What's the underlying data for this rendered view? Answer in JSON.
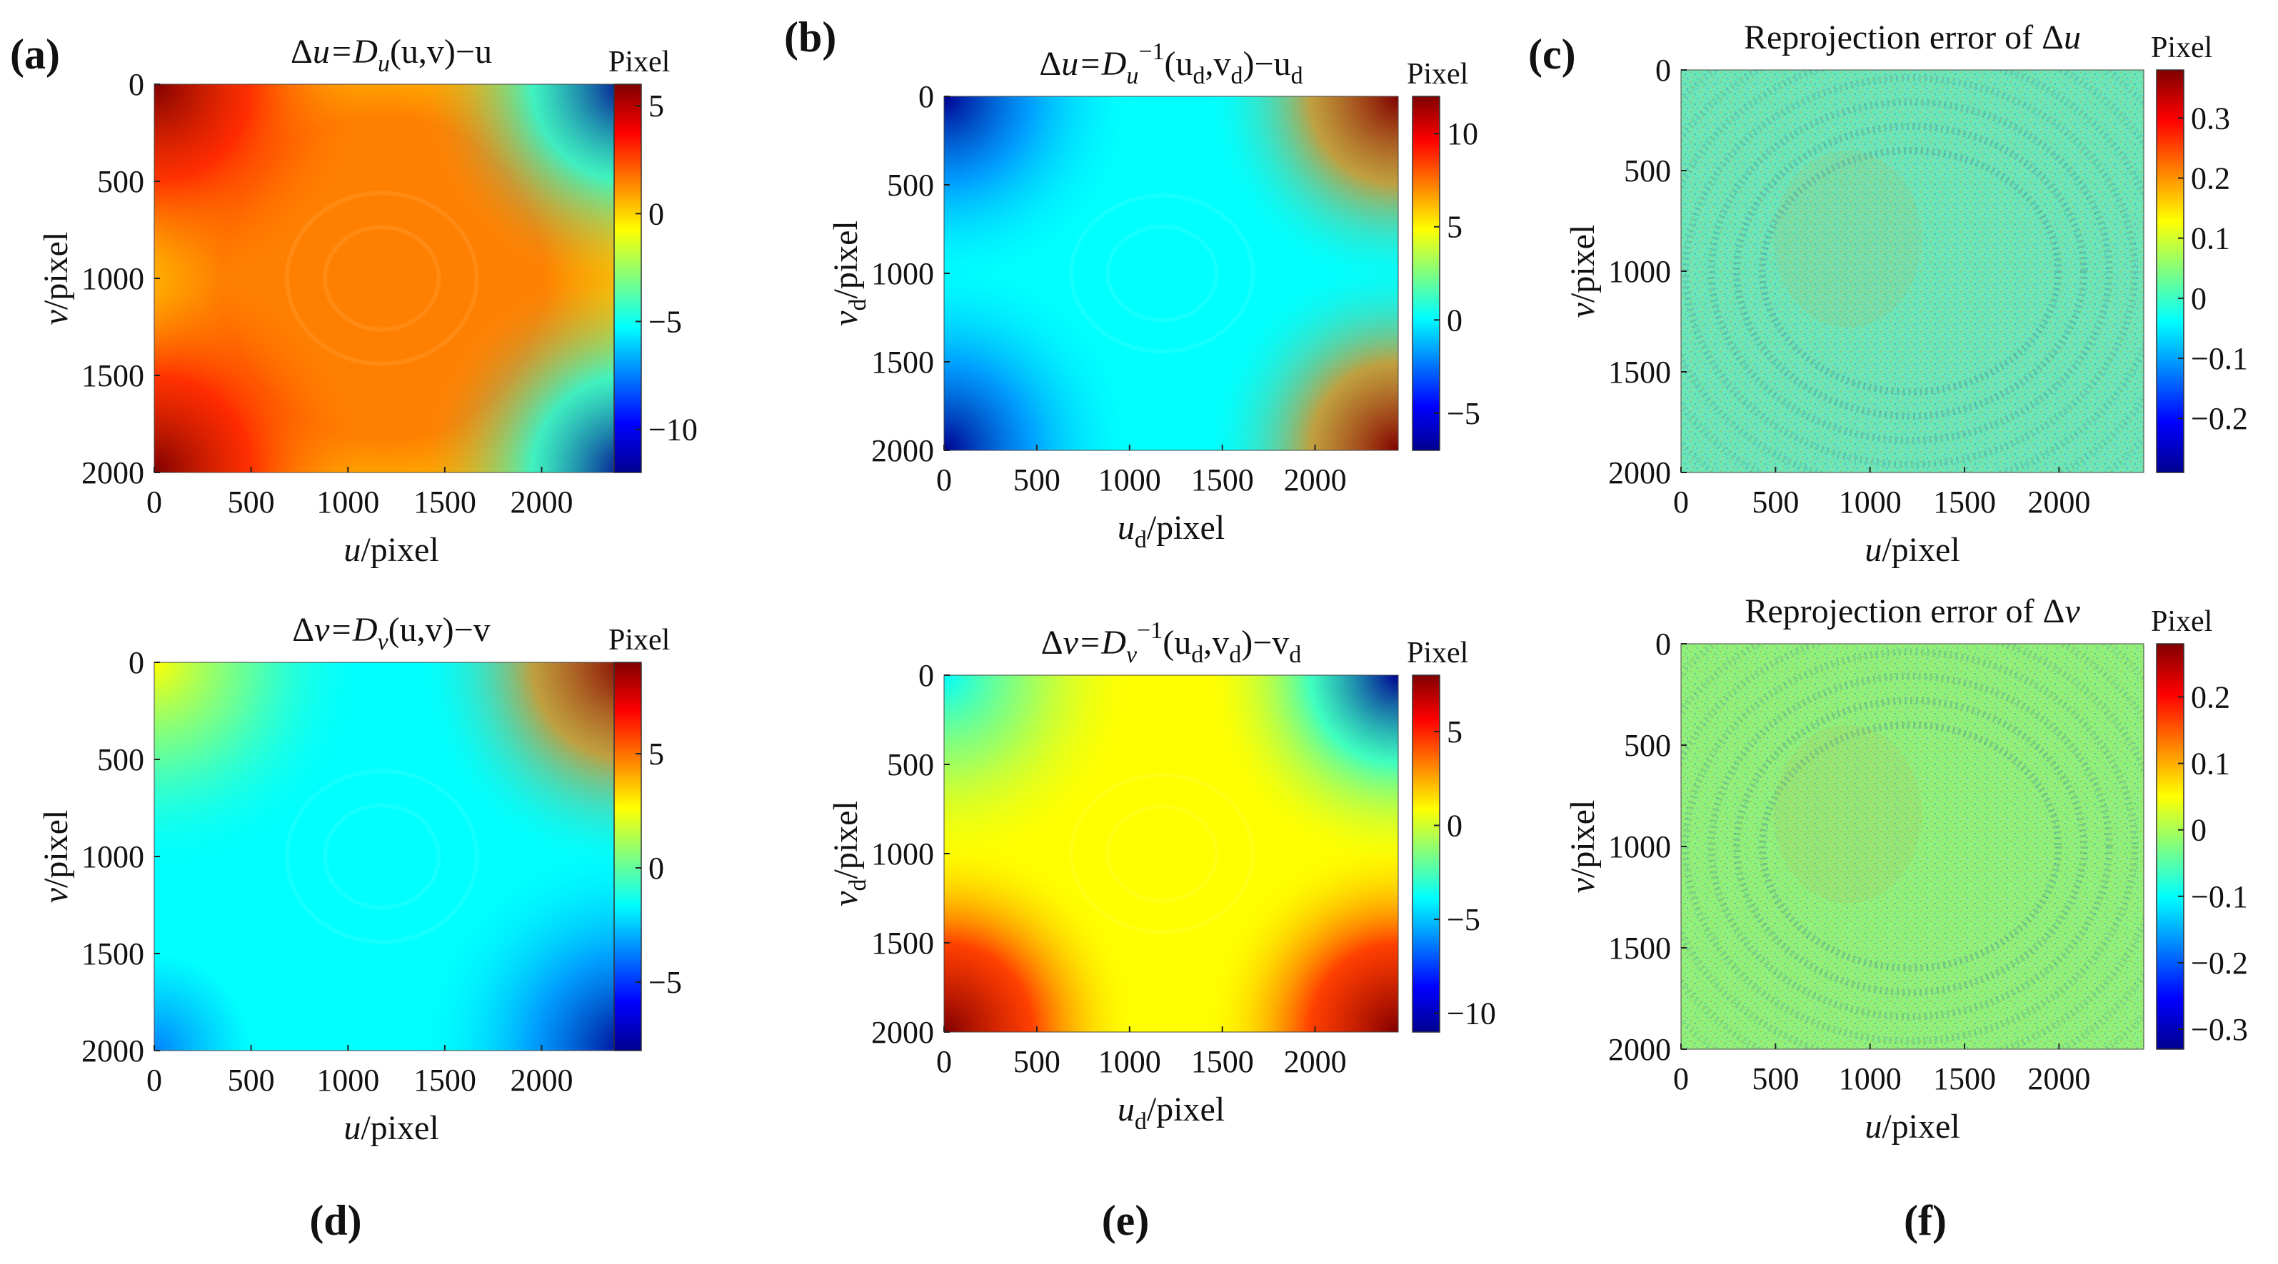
{
  "figure": {
    "tags_top": [
      "(a)",
      "(b)",
      "(c)"
    ],
    "tags_bottom": [
      "(d)",
      "(e)",
      "(f)"
    ],
    "colormap": [
      "#00008f",
      "#0000ff",
      "#0080ff",
      "#00ffff",
      "#80ff80",
      "#ffff00",
      "#ff8000",
      "#ff0000",
      "#800000"
    ]
  },
  "chart_data": [
    {
      "id": "a",
      "type": "heatmap",
      "pattern": "du",
      "title": {
        "pre": "Δ",
        "var": "u",
        "mid": "=D",
        "sub": "u",
        "sup": "",
        "args": "(u,v)−u"
      },
      "xlabel": {
        "var": "u",
        "sub": "",
        "unit": "/pixel"
      },
      "ylabel": {
        "var": "v",
        "sub": "",
        "unit": "/pixel"
      },
      "xlim": [
        0,
        2448
      ],
      "ylim": [
        2000,
        0
      ],
      "xticks": [
        "0",
        "500",
        "1000",
        "1500",
        "2000"
      ],
      "yticks": [
        "0",
        "500",
        "1000",
        "1500",
        "2000"
      ],
      "colorbar": {
        "label": "Pixel",
        "range": [
          -12,
          6
        ],
        "ticks": [
          "5",
          "0",
          "−5",
          "−10"
        ],
        "tick_values": [
          5,
          0,
          -5,
          -10
        ]
      }
    },
    {
      "id": "b",
      "type": "heatmap",
      "pattern": "du_inv",
      "title": {
        "pre": "Δ",
        "var": "u",
        "mid": "=D",
        "sub": "u",
        "sup": "−1",
        "args": "(u",
        "args2": "d",
        "args3": ",v",
        "args4": "d",
        "args5": ")−u",
        "args6": "d"
      },
      "xlabel": {
        "var": "u",
        "sub": "d",
        "unit": "/pixel"
      },
      "ylabel": {
        "var": "v",
        "sub": "d",
        "unit": "/pixel"
      },
      "xlim": [
        0,
        2448
      ],
      "ylim": [
        2000,
        0
      ],
      "xticks": [
        "0",
        "500",
        "1000",
        "1500",
        "2000"
      ],
      "yticks": [
        "0",
        "500",
        "1000",
        "1500",
        "2000"
      ],
      "colorbar": {
        "label": "Pixel",
        "range": [
          -7,
          12
        ],
        "ticks": [
          "10",
          "5",
          "0",
          "−5"
        ],
        "tick_values": [
          10,
          5,
          0,
          -5
        ]
      }
    },
    {
      "id": "c",
      "type": "heatmap",
      "pattern": "err_u",
      "title": {
        "text": "Reprojection error of Δ",
        "var": "u"
      },
      "xlabel": {
        "var": "u",
        "sub": "",
        "unit": "/pixel"
      },
      "ylabel": {
        "var": "v",
        "sub": "",
        "unit": "/pixel"
      },
      "xlim": [
        0,
        2448
      ],
      "ylim": [
        2000,
        0
      ],
      "xticks": [
        "0",
        "500",
        "1000",
        "1500",
        "2000"
      ],
      "yticks": [
        "0",
        "500",
        "1000",
        "1500",
        "2000"
      ],
      "colorbar": {
        "label": "Pixel",
        "range": [
          -0.29,
          0.38
        ],
        "ticks": [
          "0.3",
          "0.2",
          "0.1",
          "0",
          "−0.1",
          "−0.2"
        ],
        "tick_values": [
          0.3,
          0.2,
          0.1,
          0,
          -0.1,
          -0.2
        ]
      }
    },
    {
      "id": "d",
      "type": "heatmap",
      "pattern": "dv",
      "title": {
        "pre": "Δ",
        "var": "v",
        "mid": "=D",
        "sub": "v",
        "sup": "",
        "args": "(u,v)−v"
      },
      "xlabel": {
        "var": "u",
        "sub": "",
        "unit": "/pixel"
      },
      "ylabel": {
        "var": "v",
        "sub": "",
        "unit": "/pixel"
      },
      "xlim": [
        0,
        2448
      ],
      "ylim": [
        2000,
        0
      ],
      "xticks": [
        "0",
        "500",
        "1000",
        "1500",
        "2000"
      ],
      "yticks": [
        "0",
        "500",
        "1000",
        "1500",
        "2000"
      ],
      "colorbar": {
        "label": "Pixel",
        "range": [
          -8,
          9
        ],
        "ticks": [
          "5",
          "0",
          "−5"
        ],
        "tick_values": [
          5,
          0,
          -5
        ]
      }
    },
    {
      "id": "e",
      "type": "heatmap",
      "pattern": "dv_inv",
      "title": {
        "pre": "Δ",
        "var": "v",
        "mid": "=D",
        "sub": "v",
        "sup": "−1",
        "args": "(u",
        "args2": "d",
        "args3": ",v",
        "args4": "d",
        "args5": ")−v",
        "args6": "d"
      },
      "xlabel": {
        "var": "u",
        "sub": "d",
        "unit": "/pixel"
      },
      "ylabel": {
        "var": "v",
        "sub": "d",
        "unit": "/pixel"
      },
      "xlim": [
        0,
        2448
      ],
      "ylim": [
        2000,
        0
      ],
      "xticks": [
        "0",
        "500",
        "1000",
        "1500",
        "2000"
      ],
      "yticks": [
        "0",
        "500",
        "1000",
        "1500",
        "2000"
      ],
      "colorbar": {
        "label": "Pixel",
        "range": [
          -11,
          8
        ],
        "ticks": [
          "5",
          "0",
          "−5",
          "−10"
        ],
        "tick_values": [
          5,
          0,
          -5,
          -10
        ]
      }
    },
    {
      "id": "f",
      "type": "heatmap",
      "pattern": "err_v",
      "title": {
        "text": "Reprojection error of Δ",
        "var": "v"
      },
      "xlabel": {
        "var": "u",
        "sub": "",
        "unit": "/pixel"
      },
      "ylabel": {
        "var": "v",
        "sub": "",
        "unit": "/pixel"
      },
      "xlim": [
        0,
        2448
      ],
      "ylim": [
        2000,
        0
      ],
      "xticks": [
        "0",
        "500",
        "1000",
        "1500",
        "2000"
      ],
      "yticks": [
        "0",
        "500",
        "1000",
        "1500",
        "2000"
      ],
      "colorbar": {
        "label": "Pixel",
        "range": [
          -0.33,
          0.28
        ],
        "ticks": [
          "0.2",
          "0.1",
          "0",
          "−0.1",
          "−0.2",
          "−0.3"
        ],
        "tick_values": [
          0.2,
          0.1,
          0,
          -0.1,
          -0.2,
          -0.3
        ]
      }
    }
  ]
}
